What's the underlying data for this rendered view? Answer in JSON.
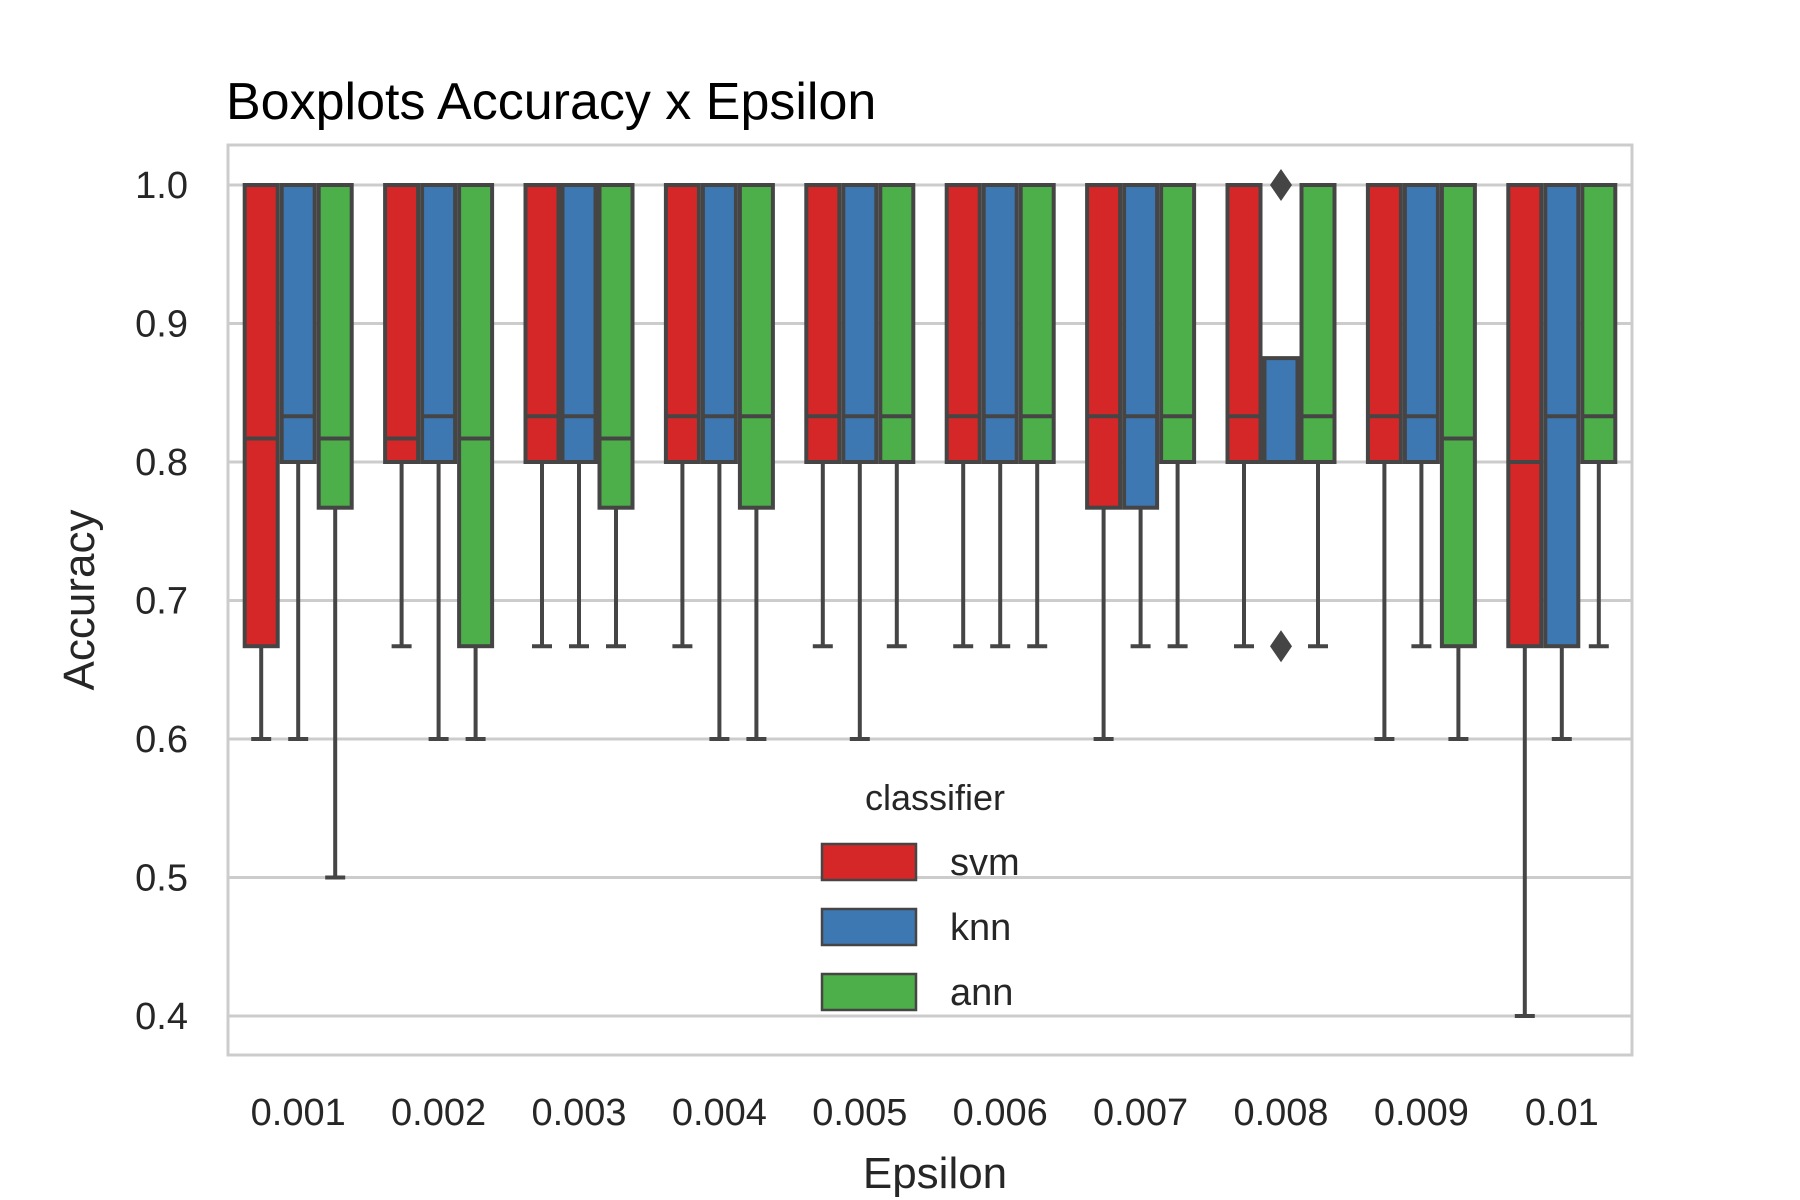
{
  "chart_data": {
    "type": "box",
    "title": "Boxplots Accuracy x Epsilon",
    "xlabel": "Epsilon",
    "ylabel": "Accuracy",
    "ylim": [
      0.37,
      1.03
    ],
    "yticks": [
      "0.4",
      "0.5",
      "0.6",
      "0.7",
      "0.8",
      "0.9",
      "1.0"
    ],
    "grid": true,
    "categories": [
      "0.001",
      "0.002",
      "0.003",
      "0.004",
      "0.005",
      "0.006",
      "0.007",
      "0.008",
      "0.009",
      "0.01"
    ],
    "legend": {
      "title": "classifier",
      "placement": "lower-center"
    },
    "series": [
      {
        "name": "svm",
        "color": "#d62728",
        "boxes": [
          {
            "whislo": 0.6,
            "q1": 0.667,
            "med": 0.817,
            "q3": 1.0,
            "whishi": 1.0,
            "fliers": []
          },
          {
            "whislo": 0.667,
            "q1": 0.8,
            "med": 0.817,
            "q3": 1.0,
            "whishi": 1.0,
            "fliers": []
          },
          {
            "whislo": 0.667,
            "q1": 0.8,
            "med": 0.833,
            "q3": 1.0,
            "whishi": 1.0,
            "fliers": []
          },
          {
            "whislo": 0.667,
            "q1": 0.8,
            "med": 0.833,
            "q3": 1.0,
            "whishi": 1.0,
            "fliers": []
          },
          {
            "whislo": 0.667,
            "q1": 0.8,
            "med": 0.833,
            "q3": 1.0,
            "whishi": 1.0,
            "fliers": []
          },
          {
            "whislo": 0.667,
            "q1": 0.8,
            "med": 0.833,
            "q3": 1.0,
            "whishi": 1.0,
            "fliers": []
          },
          {
            "whislo": 0.6,
            "q1": 0.767,
            "med": 0.833,
            "q3": 1.0,
            "whishi": 1.0,
            "fliers": []
          },
          {
            "whislo": 0.667,
            "q1": 0.8,
            "med": 0.833,
            "q3": 1.0,
            "whishi": 1.0,
            "fliers": []
          },
          {
            "whislo": 0.6,
            "q1": 0.8,
            "med": 0.833,
            "q3": 1.0,
            "whishi": 1.0,
            "fliers": []
          },
          {
            "whislo": 0.4,
            "q1": 0.667,
            "med": 0.8,
            "q3": 1.0,
            "whishi": 1.0,
            "fliers": []
          }
        ]
      },
      {
        "name": "knn",
        "color": "#3e78b2",
        "boxes": [
          {
            "whislo": 0.6,
            "q1": 0.8,
            "med": 0.833,
            "q3": 1.0,
            "whishi": 1.0,
            "fliers": []
          },
          {
            "whislo": 0.6,
            "q1": 0.8,
            "med": 0.833,
            "q3": 1.0,
            "whishi": 1.0,
            "fliers": []
          },
          {
            "whislo": 0.667,
            "q1": 0.8,
            "med": 0.833,
            "q3": 1.0,
            "whishi": 1.0,
            "fliers": []
          },
          {
            "whislo": 0.6,
            "q1": 0.8,
            "med": 0.833,
            "q3": 1.0,
            "whishi": 1.0,
            "fliers": []
          },
          {
            "whislo": 0.6,
            "q1": 0.8,
            "med": 0.833,
            "q3": 1.0,
            "whishi": 1.0,
            "fliers": []
          },
          {
            "whislo": 0.667,
            "q1": 0.8,
            "med": 0.833,
            "q3": 1.0,
            "whishi": 1.0,
            "fliers": []
          },
          {
            "whislo": 0.667,
            "q1": 0.767,
            "med": 0.833,
            "q3": 1.0,
            "whishi": 1.0,
            "fliers": []
          },
          {
            "whislo": 0.8,
            "q1": 0.8,
            "med": 0.8,
            "q3": 0.875,
            "whishi": 0.875,
            "fliers": [
              1.0,
              0.667
            ]
          },
          {
            "whislo": 0.667,
            "q1": 0.8,
            "med": 0.833,
            "q3": 1.0,
            "whishi": 1.0,
            "fliers": []
          },
          {
            "whislo": 0.6,
            "q1": 0.667,
            "med": 0.833,
            "q3": 1.0,
            "whishi": 1.0,
            "fliers": []
          }
        ]
      },
      {
        "name": "ann",
        "color": "#4daf4a",
        "boxes": [
          {
            "whislo": 0.5,
            "q1": 0.767,
            "med": 0.817,
            "q3": 1.0,
            "whishi": 1.0,
            "fliers": []
          },
          {
            "whislo": 0.6,
            "q1": 0.667,
            "med": 0.817,
            "q3": 1.0,
            "whishi": 1.0,
            "fliers": []
          },
          {
            "whislo": 0.667,
            "q1": 0.767,
            "med": 0.817,
            "q3": 1.0,
            "whishi": 1.0,
            "fliers": []
          },
          {
            "whislo": 0.6,
            "q1": 0.767,
            "med": 0.833,
            "q3": 1.0,
            "whishi": 1.0,
            "fliers": []
          },
          {
            "whislo": 0.667,
            "q1": 0.8,
            "med": 0.833,
            "q3": 1.0,
            "whishi": 1.0,
            "fliers": []
          },
          {
            "whislo": 0.667,
            "q1": 0.8,
            "med": 0.833,
            "q3": 1.0,
            "whishi": 1.0,
            "fliers": []
          },
          {
            "whislo": 0.667,
            "q1": 0.8,
            "med": 0.833,
            "q3": 1.0,
            "whishi": 1.0,
            "fliers": []
          },
          {
            "whislo": 0.667,
            "q1": 0.8,
            "med": 0.833,
            "q3": 1.0,
            "whishi": 1.0,
            "fliers": []
          },
          {
            "whislo": 0.6,
            "q1": 0.667,
            "med": 0.817,
            "q3": 1.0,
            "whishi": 1.0,
            "fliers": []
          },
          {
            "whislo": 0.667,
            "q1": 0.8,
            "med": 0.833,
            "q3": 1.0,
            "whishi": 1.0,
            "fliers": []
          }
        ]
      }
    ]
  }
}
